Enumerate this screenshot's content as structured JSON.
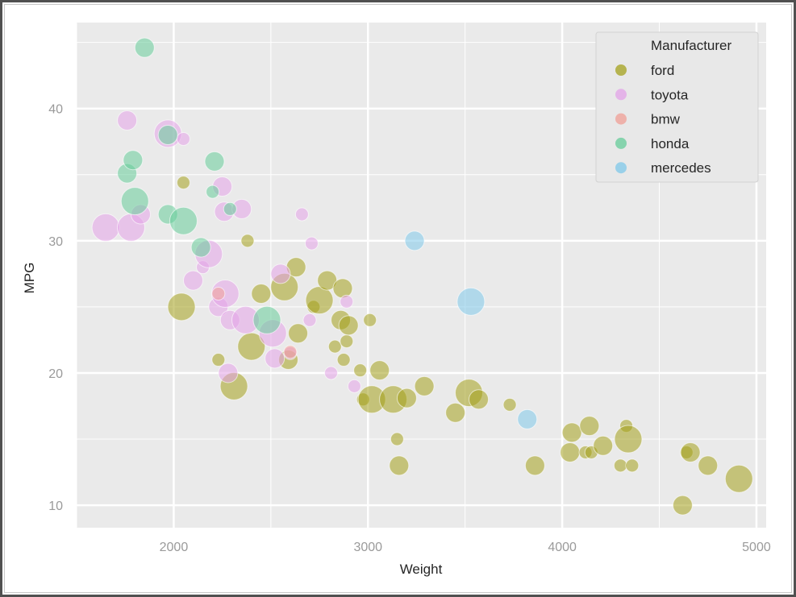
{
  "chart_data": {
    "type": "scatter",
    "title": "",
    "xlabel": "Weight",
    "ylabel": "MPG",
    "xlim": [
      1500,
      5050
    ],
    "ylim": [
      8.3,
      46.5
    ],
    "xticks": [
      2000,
      3000,
      4000,
      5000
    ],
    "yticks": [
      10,
      20,
      30,
      40
    ],
    "grid": true,
    "legend": {
      "title": "Manufacturer",
      "placement": "top-right"
    },
    "colors": {
      "ford": "#a4a11c",
      "toyota": "#e3a3e8",
      "bmw": "#f09f95",
      "honda": "#66cc99",
      "mercedes": "#7fc8ea",
      "background": "#eaeaea",
      "grid": "#ffffff"
    },
    "series": [
      {
        "name": "ford",
        "points": [
          [
            2040,
            25.0,
            3
          ],
          [
            2050,
            34.4,
            1
          ],
          [
            2230,
            21.0,
            1
          ],
          [
            2310,
            19.0,
            3
          ],
          [
            2380,
            30.0,
            1
          ],
          [
            2400,
            22.0,
            3
          ],
          [
            2450,
            26.0,
            2
          ],
          [
            2570,
            26.5,
            3
          ],
          [
            2590,
            21.0,
            2
          ],
          [
            2630,
            28.0,
            2
          ],
          [
            2640,
            23.0,
            2
          ],
          [
            2720,
            25.0,
            1
          ],
          [
            2750,
            25.5,
            3
          ],
          [
            2790,
            27.0,
            2
          ],
          [
            2830,
            22.0,
            1
          ],
          [
            2860,
            24.0,
            2
          ],
          [
            2870,
            26.4,
            2
          ],
          [
            2875,
            21.0,
            1
          ],
          [
            2890,
            22.4,
            1
          ],
          [
            2900,
            23.6,
            2
          ],
          [
            2960,
            20.2,
            1
          ],
          [
            2975,
            18.0,
            1
          ],
          [
            3010,
            24.0,
            1
          ],
          [
            3020,
            18.0,
            3
          ],
          [
            3060,
            20.2,
            2
          ],
          [
            3130,
            18.0,
            3
          ],
          [
            3150,
            15.0,
            1
          ],
          [
            3160,
            13.0,
            2
          ],
          [
            3200,
            18.1,
            2
          ],
          [
            3290,
            19.0,
            2
          ],
          [
            3450,
            17.0,
            2
          ],
          [
            3520,
            18.5,
            3
          ],
          [
            3570,
            18.0,
            2
          ],
          [
            3730,
            17.6,
            1
          ],
          [
            3860,
            13.0,
            2
          ],
          [
            4040,
            14.0,
            2
          ],
          [
            4050,
            15.5,
            2
          ],
          [
            4120,
            14.0,
            1
          ],
          [
            4140,
            16.0,
            2
          ],
          [
            4150,
            14.0,
            1
          ],
          [
            4210,
            14.5,
            2
          ],
          [
            4300,
            13.0,
            1
          ],
          [
            4330,
            16.0,
            1
          ],
          [
            4340,
            15.0,
            3
          ],
          [
            4360,
            13.0,
            1
          ],
          [
            4620,
            10.0,
            2
          ],
          [
            4640,
            14.0,
            1
          ],
          [
            4660,
            14.0,
            2
          ],
          [
            4750,
            13.0,
            2
          ],
          [
            4910,
            12.0,
            3
          ]
        ]
      },
      {
        "name": "toyota",
        "points": [
          [
            1650,
            31.0,
            3
          ],
          [
            1760,
            39.1,
            2
          ],
          [
            1780,
            31.0,
            3
          ],
          [
            1830,
            32.0,
            2
          ],
          [
            1970,
            38.1,
            3
          ],
          [
            2050,
            37.7,
            1
          ],
          [
            2100,
            27.0,
            2
          ],
          [
            2150,
            28.0,
            1
          ],
          [
            2180,
            29.0,
            3
          ],
          [
            2230,
            25.0,
            2
          ],
          [
            2250,
            34.1,
            2
          ],
          [
            2260,
            32.2,
            2
          ],
          [
            2265,
            26.0,
            3
          ],
          [
            2280,
            20.0,
            2
          ],
          [
            2290,
            24.0,
            2
          ],
          [
            2350,
            32.4,
            2
          ],
          [
            2370,
            24.0,
            3
          ],
          [
            2510,
            23.0,
            3
          ],
          [
            2520,
            21.1,
            2
          ],
          [
            2550,
            27.5,
            2
          ],
          [
            2600,
            21.5,
            1
          ],
          [
            2660,
            32.0,
            1
          ],
          [
            2700,
            24.0,
            1
          ],
          [
            2710,
            29.8,
            1
          ],
          [
            2810,
            20.0,
            1
          ],
          [
            2890,
            25.4,
            1
          ],
          [
            2930,
            19.0,
            1
          ]
        ]
      },
      {
        "name": "bmw",
        "points": [
          [
            2230,
            26.0,
            1
          ],
          [
            2600,
            21.6,
            1
          ]
        ]
      },
      {
        "name": "honda",
        "points": [
          [
            1760,
            35.1,
            2
          ],
          [
            1790,
            36.1,
            2
          ],
          [
            1800,
            33.0,
            3
          ],
          [
            1850,
            44.6,
            2
          ],
          [
            1970,
            32.0,
            2
          ],
          [
            1970,
            38.0,
            2
          ],
          [
            2050,
            31.5,
            3
          ],
          [
            2140,
            29.5,
            2
          ],
          [
            2200,
            33.7,
            1
          ],
          [
            2210,
            36.0,
            2
          ],
          [
            2290,
            32.4,
            1
          ],
          [
            2480,
            24.0,
            3
          ]
        ]
      },
      {
        "name": "mercedes",
        "points": [
          [
            3240,
            30.0,
            2
          ],
          [
            3530,
            25.4,
            3
          ],
          [
            3820,
            16.5,
            2
          ]
        ]
      }
    ]
  }
}
